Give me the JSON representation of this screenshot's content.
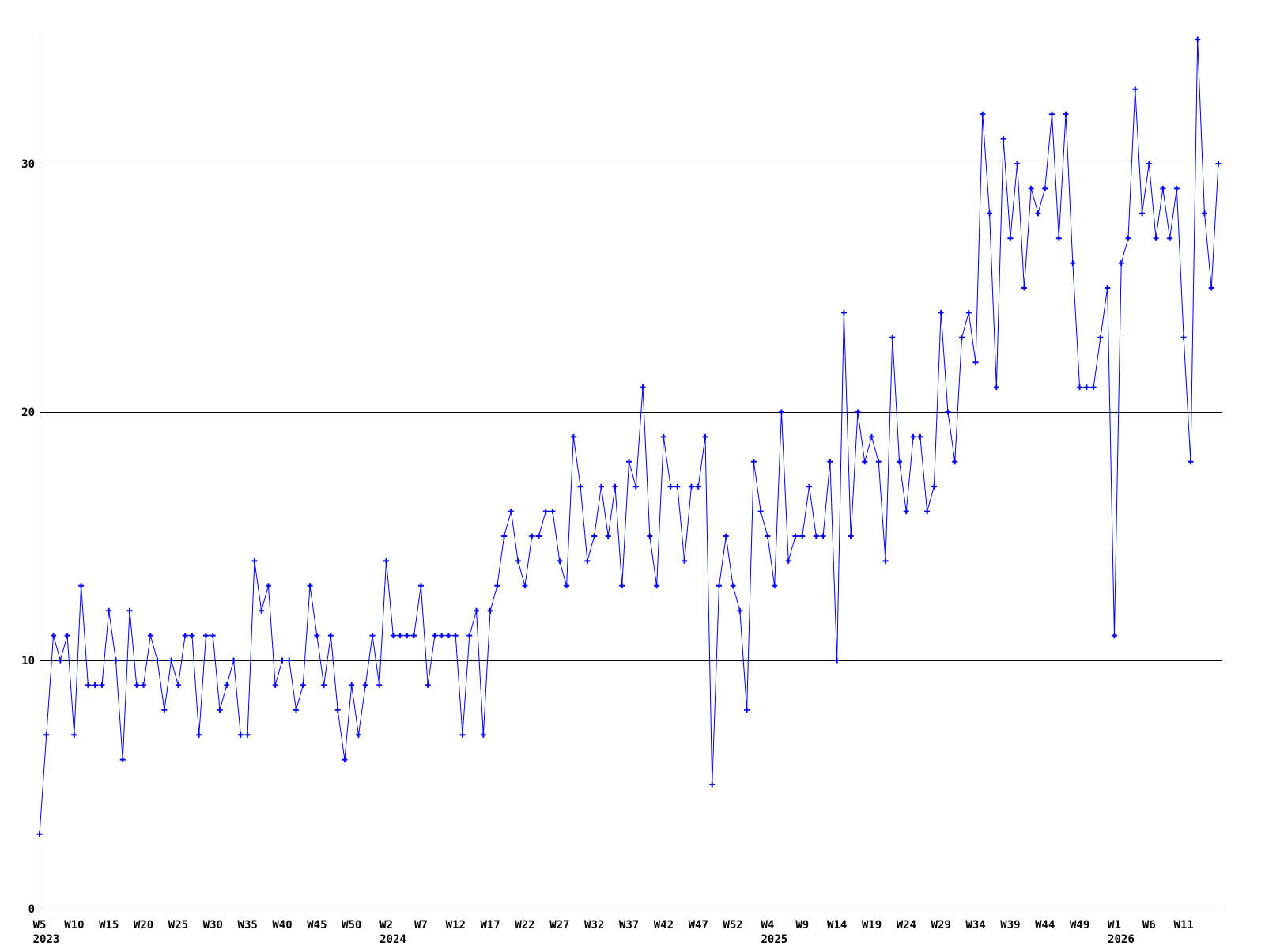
{
  "chart_data": {
    "type": "line",
    "title": "",
    "xlabel": "",
    "ylabel": "",
    "legend": "none",
    "grid": "horizontal",
    "background_color": "#ffffff",
    "line_color": "#0000ff",
    "marker": "plus",
    "marker_color": "#0000ff",
    "axis_color": "#000000",
    "ylim": [
      0,
      35.2
    ],
    "yticks": [
      0,
      10,
      20,
      30
    ],
    "x_unit": "ISO week, weekly data",
    "x_first_point": "W5 2023",
    "x_last_point": "W16 2026",
    "x_tick_interval": 5,
    "x_ticks": [
      {
        "i": 0,
        "label": "W5",
        "year": "2023"
      },
      {
        "i": 5,
        "label": "W10"
      },
      {
        "i": 10,
        "label": "W15"
      },
      {
        "i": 15,
        "label": "W20"
      },
      {
        "i": 20,
        "label": "W25"
      },
      {
        "i": 25,
        "label": "W30"
      },
      {
        "i": 30,
        "label": "W35"
      },
      {
        "i": 35,
        "label": "W40"
      },
      {
        "i": 40,
        "label": "W45"
      },
      {
        "i": 45,
        "label": "W50"
      },
      {
        "i": 50,
        "label": "W2",
        "year": "2024"
      },
      {
        "i": 55,
        "label": "W7"
      },
      {
        "i": 60,
        "label": "W12"
      },
      {
        "i": 65,
        "label": "W17"
      },
      {
        "i": 70,
        "label": "W22"
      },
      {
        "i": 75,
        "label": "W27"
      },
      {
        "i": 80,
        "label": "W32"
      },
      {
        "i": 85,
        "label": "W37"
      },
      {
        "i": 90,
        "label": "W42"
      },
      {
        "i": 95,
        "label": "W47"
      },
      {
        "i": 100,
        "label": "W52"
      },
      {
        "i": 105,
        "label": "W4",
        "year": "2025"
      },
      {
        "i": 110,
        "label": "W9"
      },
      {
        "i": 115,
        "label": "W14"
      },
      {
        "i": 120,
        "label": "W19"
      },
      {
        "i": 125,
        "label": "W24"
      },
      {
        "i": 130,
        "label": "W29"
      },
      {
        "i": 135,
        "label": "W34"
      },
      {
        "i": 140,
        "label": "W39"
      },
      {
        "i": 145,
        "label": "W44"
      },
      {
        "i": 150,
        "label": "W49"
      },
      {
        "i": 155,
        "label": "W1",
        "year": "2026"
      },
      {
        "i": 160,
        "label": "W6"
      },
      {
        "i": 165,
        "label": "W11"
      }
    ],
    "values": [
      3,
      7,
      11,
      10,
      11,
      7,
      13,
      9,
      9,
      9,
      12,
      10,
      6,
      12,
      9,
      9,
      11,
      10,
      8,
      10,
      9,
      11,
      11,
      7,
      11,
      11,
      8,
      9,
      10,
      7,
      7,
      14,
      12,
      13,
      9,
      10,
      10,
      8,
      9,
      13,
      11,
      9,
      11,
      8,
      6,
      9,
      7,
      9,
      11,
      9,
      14,
      11,
      11,
      11,
      11,
      13,
      9,
      11,
      11,
      11,
      11,
      7,
      11,
      12,
      7,
      12,
      13,
      15,
      16,
      14,
      13,
      15,
      15,
      16,
      16,
      14,
      13,
      19,
      17,
      14,
      15,
      17,
      15,
      17,
      13,
      18,
      17,
      21,
      15,
      13,
      19,
      17,
      17,
      14,
      17,
      17,
      19,
      5,
      13,
      15,
      13,
      12,
      8,
      18,
      16,
      15,
      13,
      20,
      14,
      15,
      15,
      17,
      15,
      15,
      18,
      10,
      24,
      15,
      20,
      18,
      19,
      18,
      14,
      23,
      18,
      16,
      19,
      19,
      16,
      17,
      24,
      20,
      18,
      23,
      24,
      22,
      32,
      28,
      21,
      31,
      27,
      30,
      25,
      29,
      28,
      29,
      32,
      27,
      32,
      26,
      21,
      21,
      21,
      23,
      25,
      11,
      26,
      27,
      33,
      28,
      30,
      27,
      29,
      27,
      29,
      23,
      18,
      35,
      28,
      25,
      30
    ]
  }
}
